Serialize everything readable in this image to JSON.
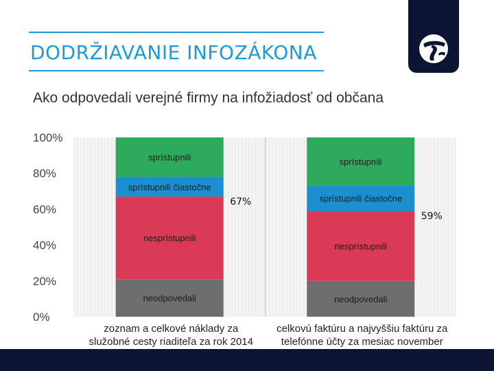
{
  "header": {
    "title": "DODRŽIAVANIE INFOZÁKONA",
    "accent_color": "#1c9ad6",
    "logo_icon": "transparency-international-logo"
  },
  "subtitle": "Ako odpovedali verejné firmy na infožiadosť od občana",
  "chart_data": {
    "type": "bar",
    "stacked": true,
    "categories": [
      [
        "zoznam a celkové náklady za",
        "služobné cesty riaditeľa za rok 2014"
      ],
      [
        "celkovú faktúru a najvyššiu faktúru za",
        "telefónne účty za mesiac november"
      ]
    ],
    "series": [
      {
        "name": "neodpovedali",
        "color": "#6d6e70",
        "values": [
          21,
          20
        ]
      },
      {
        "name": "nesprístupnili",
        "color": "#db3a55",
        "values": [
          46,
          39
        ]
      },
      {
        "name": "sprístupnili čiastočne",
        "color": "#1c8fd0",
        "values": [
          11,
          14
        ]
      },
      {
        "name": "sprístupnili",
        "color": "#2eaa5c",
        "values": [
          22,
          27
        ]
      }
    ],
    "annotations": [
      "67%",
      "59%"
    ],
    "ylim": [
      0,
      100
    ],
    "yticks": [
      "0%",
      "20%",
      "40%",
      "60%",
      "80%",
      "100%"
    ],
    "xlabel": "",
    "ylabel": "",
    "grid": true,
    "legend": "none"
  }
}
